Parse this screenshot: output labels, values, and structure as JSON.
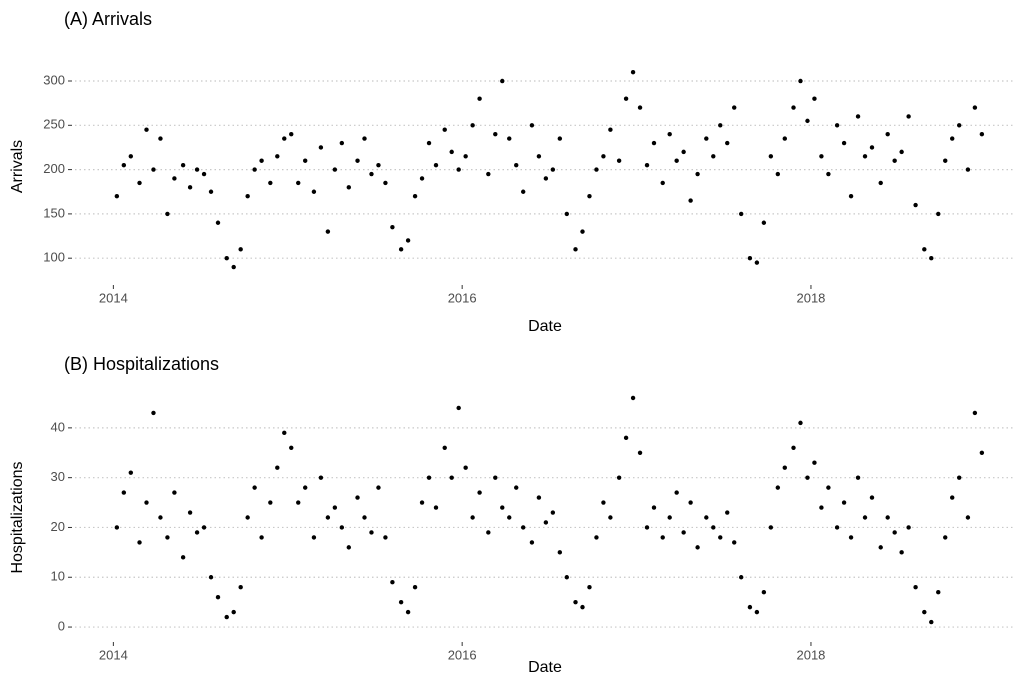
{
  "chart_data": [
    {
      "type": "scatter",
      "title": "(A) Arrivals",
      "x_label": "Date",
      "y_label": "Arrivals",
      "color": "#000000",
      "grid": true,
      "xlim": [
        2013.78,
        2019.17
      ],
      "xticks": [
        2014,
        2016,
        2018
      ],
      "ylim": [
        72,
        335
      ],
      "yticks": [
        100,
        150,
        200,
        250,
        300
      ],
      "x": [
        2014.02,
        2014.06,
        2014.1,
        2014.15,
        2014.19,
        2014.23,
        2014.27,
        2014.31,
        2014.35,
        2014.4,
        2014.44,
        2014.48,
        2014.52,
        2014.56,
        2014.6,
        2014.65,
        2014.69,
        2014.73,
        2014.77,
        2014.81,
        2014.85,
        2014.9,
        2014.94,
        2014.98,
        2015.02,
        2015.06,
        2015.1,
        2015.15,
        2015.19,
        2015.23,
        2015.27,
        2015.31,
        2015.35,
        2015.4,
        2015.44,
        2015.48,
        2015.52,
        2015.56,
        2015.6,
        2015.65,
        2015.69,
        2015.73,
        2015.77,
        2015.81,
        2015.85,
        2015.9,
        2015.94,
        2015.98,
        2016.02,
        2016.06,
        2016.1,
        2016.15,
        2016.19,
        2016.23,
        2016.27,
        2016.31,
        2016.35,
        2016.4,
        2016.44,
        2016.48,
        2016.52,
        2016.56,
        2016.6,
        2016.65,
        2016.69,
        2016.73,
        2016.77,
        2016.81,
        2016.85,
        2016.9,
        2016.94,
        2016.98,
        2017.02,
        2017.06,
        2017.1,
        2017.15,
        2017.19,
        2017.23,
        2017.27,
        2017.31,
        2017.35,
        2017.4,
        2017.44,
        2017.48,
        2017.52,
        2017.56,
        2017.6,
        2017.65,
        2017.69,
        2017.73,
        2017.77,
        2017.81,
        2017.85,
        2017.9,
        2017.94,
        2017.98,
        2018.02,
        2018.06,
        2018.1,
        2018.15,
        2018.19,
        2018.23,
        2018.27,
        2018.31,
        2018.35,
        2018.4,
        2018.44,
        2018.48,
        2018.52,
        2018.56,
        2018.6,
        2018.65,
        2018.69,
        2018.73,
        2018.77,
        2018.81,
        2018.85,
        2018.9,
        2018.94,
        2018.98
      ],
      "values": [
        170,
        205,
        215,
        185,
        245,
        200,
        235,
        150,
        190,
        205,
        180,
        200,
        195,
        175,
        140,
        100,
        90,
        110,
        170,
        200,
        210,
        185,
        215,
        235,
        240,
        185,
        210,
        175,
        225,
        130,
        200,
        230,
        180,
        210,
        235,
        195,
        205,
        185,
        135,
        110,
        120,
        170,
        190,
        230,
        205,
        245,
        220,
        200,
        215,
        250,
        280,
        195,
        240,
        300,
        235,
        205,
        175,
        250,
        215,
        190,
        200,
        235,
        150,
        110,
        130,
        170,
        200,
        215,
        245,
        210,
        280,
        310,
        270,
        205,
        230,
        185,
        240,
        210,
        220,
        165,
        195,
        235,
        215,
        250,
        230,
        270,
        150,
        100,
        95,
        140,
        215,
        195,
        235,
        270,
        300,
        255,
        280,
        215,
        195,
        250,
        230,
        170,
        260,
        215,
        225,
        185,
        240,
        210,
        220,
        260,
        160,
        110,
        100,
        150,
        210,
        235,
        250,
        200,
        270,
        240
      ]
    },
    {
      "type": "scatter",
      "title": "(B) Hospitalizations",
      "x_label": "Date",
      "y_label": "Hospitalizations",
      "color": "#000000",
      "grid": true,
      "xlim": [
        2013.78,
        2019.17
      ],
      "xticks": [
        2014,
        2016,
        2018
      ],
      "ylim": [
        -2.6,
        46.6
      ],
      "yticks": [
        0,
        10,
        20,
        30,
        40
      ],
      "x": [
        2014.02,
        2014.06,
        2014.1,
        2014.15,
        2014.19,
        2014.23,
        2014.27,
        2014.31,
        2014.35,
        2014.4,
        2014.44,
        2014.48,
        2014.52,
        2014.56,
        2014.6,
        2014.65,
        2014.69,
        2014.73,
        2014.77,
        2014.81,
        2014.85,
        2014.9,
        2014.94,
        2014.98,
        2015.02,
        2015.06,
        2015.1,
        2015.15,
        2015.19,
        2015.23,
        2015.27,
        2015.31,
        2015.35,
        2015.4,
        2015.44,
        2015.48,
        2015.52,
        2015.56,
        2015.6,
        2015.65,
        2015.69,
        2015.73,
        2015.77,
        2015.81,
        2015.85,
        2015.9,
        2015.94,
        2015.98,
        2016.02,
        2016.06,
        2016.1,
        2016.15,
        2016.19,
        2016.23,
        2016.27,
        2016.31,
        2016.35,
        2016.4,
        2016.44,
        2016.48,
        2016.52,
        2016.56,
        2016.6,
        2016.65,
        2016.69,
        2016.73,
        2016.77,
        2016.81,
        2016.85,
        2016.9,
        2016.94,
        2016.98,
        2017.02,
        2017.06,
        2017.1,
        2017.15,
        2017.19,
        2017.23,
        2017.27,
        2017.31,
        2017.35,
        2017.4,
        2017.44,
        2017.48,
        2017.52,
        2017.56,
        2017.6,
        2017.65,
        2017.69,
        2017.73,
        2017.77,
        2017.81,
        2017.85,
        2017.9,
        2017.94,
        2017.98,
        2018.02,
        2018.06,
        2018.1,
        2018.15,
        2018.19,
        2018.23,
        2018.27,
        2018.31,
        2018.35,
        2018.4,
        2018.44,
        2018.48,
        2018.52,
        2018.56,
        2018.6,
        2018.65,
        2018.69,
        2018.73,
        2018.77,
        2018.81,
        2018.85,
        2018.9,
        2018.94,
        2018.98
      ],
      "values": [
        20,
        27,
        31,
        17,
        25,
        43,
        22,
        18,
        27,
        14,
        23,
        19,
        20,
        10,
        6,
        2,
        3,
        8,
        22,
        28,
        18,
        25,
        32,
        39,
        36,
        25,
        28,
        18,
        30,
        22,
        24,
        20,
        16,
        26,
        22,
        19,
        28,
        18,
        9,
        5,
        3,
        8,
        25,
        30,
        24,
        36,
        30,
        44,
        32,
        22,
        27,
        19,
        30,
        24,
        22,
        28,
        20,
        17,
        26,
        21,
        23,
        15,
        10,
        5,
        4,
        8,
        18,
        25,
        22,
        30,
        38,
        46,
        35,
        20,
        24,
        18,
        22,
        27,
        19,
        25,
        16,
        22,
        20,
        18,
        23,
        17,
        10,
        4,
        3,
        7,
        20,
        28,
        32,
        36,
        41,
        30,
        33,
        24,
        28,
        20,
        25,
        18,
        30,
        22,
        26,
        16,
        22,
        19,
        15,
        20,
        8,
        3,
        1,
        7,
        18,
        26,
        30,
        22,
        43,
        35
      ]
    }
  ]
}
